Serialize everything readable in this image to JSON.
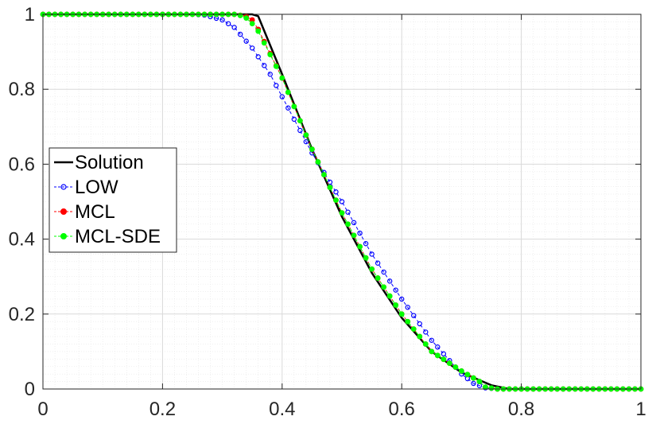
{
  "chart_data": {
    "type": "line",
    "title": "",
    "xlabel": "",
    "ylabel": "",
    "xlim": [
      0,
      1
    ],
    "ylim": [
      0,
      1
    ],
    "x_ticks": [
      0,
      0.2,
      0.4,
      0.6,
      0.8,
      1
    ],
    "y_ticks": [
      0,
      0.2,
      0.4,
      0.6,
      0.8,
      1
    ],
    "x_tick_labels": [
      "0",
      "0.2",
      "0.4",
      "0.6",
      "0.8",
      "1"
    ],
    "y_tick_labels": [
      "0",
      "0.2",
      "0.4",
      "0.6",
      "0.8",
      "1"
    ],
    "grid": true,
    "minor_grid": true,
    "legend_position": "left-middle",
    "series": [
      {
        "name": "Solution",
        "color": "#000000",
        "marker": "none",
        "x": [
          0,
          0.34,
          0.35,
          0.36,
          0.4,
          0.45,
          0.5,
          0.55,
          0.6,
          0.65,
          0.7,
          0.75,
          0.78,
          0.8,
          1
        ],
        "y": [
          1,
          1,
          1,
          0.995,
          0.84,
          0.64,
          0.46,
          0.31,
          0.19,
          0.1,
          0.044,
          0.01,
          0,
          0,
          0
        ]
      },
      {
        "name": "LOW",
        "color": "#0000ff",
        "marker": "circle",
        "x": [
          0,
          0.25,
          0.27,
          0.3,
          0.32,
          0.35,
          0.38,
          0.4,
          0.45,
          0.5,
          0.55,
          0.6,
          0.65,
          0.7,
          0.72,
          0.74,
          0.76,
          1
        ],
        "y": [
          1,
          1,
          0.998,
          0.985,
          0.965,
          0.91,
          0.84,
          0.78,
          0.63,
          0.5,
          0.36,
          0.24,
          0.13,
          0.04,
          0.015,
          0.003,
          0,
          0
        ]
      },
      {
        "name": "MCL",
        "color": "#ff0000",
        "marker": "circle",
        "x": [
          0,
          0.32,
          0.34,
          0.35,
          0.36,
          0.4,
          0.45,
          0.5,
          0.55,
          0.6,
          0.65,
          0.7,
          0.73,
          0.74,
          0.76,
          1
        ],
        "y": [
          1,
          1,
          0.995,
          0.985,
          0.96,
          0.83,
          0.64,
          0.47,
          0.32,
          0.2,
          0.1,
          0.048,
          0.02,
          0.005,
          0,
          0
        ]
      },
      {
        "name": "MCL-SDE",
        "color": "#00ff00",
        "marker": "circle",
        "x": [
          0,
          0.32,
          0.33,
          0.34,
          0.35,
          0.36,
          0.4,
          0.45,
          0.5,
          0.55,
          0.6,
          0.65,
          0.7,
          0.73,
          0.74,
          0.76,
          1
        ],
        "y": [
          1,
          1,
          0.997,
          0.99,
          0.975,
          0.955,
          0.83,
          0.64,
          0.47,
          0.32,
          0.2,
          0.1,
          0.048,
          0.02,
          0.005,
          0,
          0
        ]
      }
    ]
  }
}
